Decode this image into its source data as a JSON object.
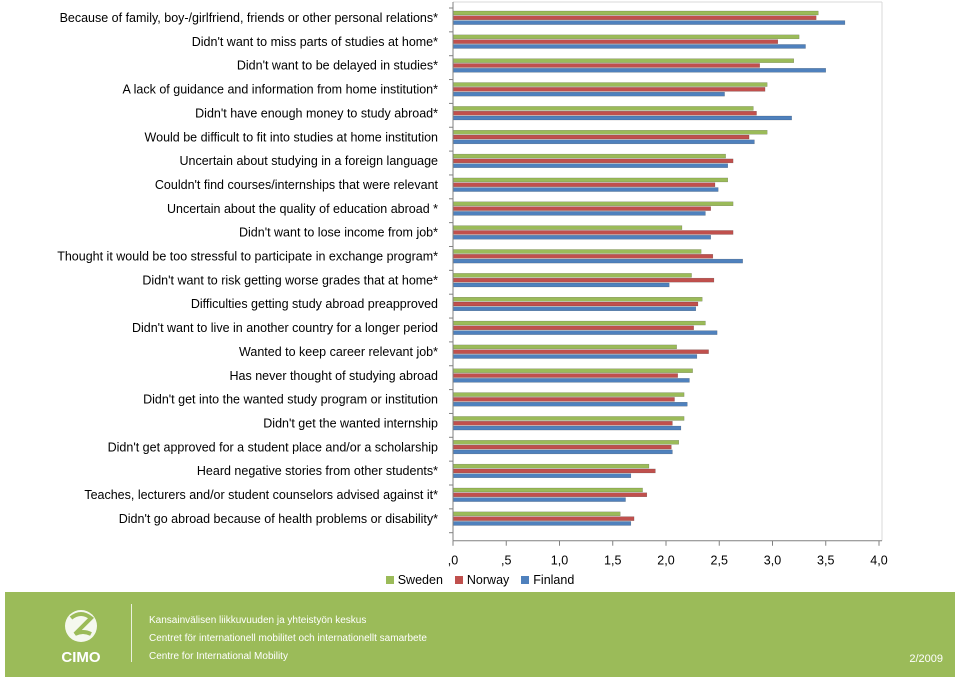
{
  "chart_data": {
    "type": "bar",
    "orientation": "horizontal",
    "categories": [
      "Because of family, boy-/girlfriend, friends or other personal relations*",
      "Didn't want to miss parts of studies at home*",
      "Didn't want to be delayed in studies*",
      "A lack of guidance and information from home institution*",
      "Didn't have enough money to study abroad*",
      "Would be difficult to fit into studies at home institution",
      "Uncertain about studying in a foreign language",
      "Couldn't find courses/internships that were relevant",
      "Uncertain about the quality of education abroad *",
      "Didn't want to lose income from job*",
      "Thought it would be too stressful to participate in exchange program*",
      "Didn't want to risk getting worse grades that at home*",
      "Difficulties getting study abroad preapproved",
      "Didn't want to live in another country for a longer period",
      "Wanted to keep career relevant job*",
      "Has never thought of studying abroad",
      "Didn't get into the wanted study program or institution",
      "Didn't get the wanted internship",
      "Didn't get approved for a student place and/or a scholarship",
      "Heard negative stories from other students*",
      "Teaches, lecturers and/or student counselors advised against it*",
      "Didn't go abroad because of health problems or disability*"
    ],
    "series": [
      {
        "name": "Sweden",
        "color": "#9BBB59",
        "values": [
          3.43,
          3.25,
          3.2,
          2.95,
          2.82,
          2.95,
          2.56,
          2.58,
          2.63,
          2.15,
          2.33,
          2.24,
          2.34,
          2.37,
          2.1,
          2.25,
          2.17,
          2.17,
          2.12,
          1.84,
          1.78,
          1.57
        ]
      },
      {
        "name": "Norway",
        "color": "#C0504D",
        "values": [
          3.41,
          3.05,
          2.88,
          2.93,
          2.85,
          2.78,
          2.63,
          2.46,
          2.42,
          2.63,
          2.44,
          2.45,
          2.3,
          2.26,
          2.4,
          2.11,
          2.08,
          2.06,
          2.05,
          1.9,
          1.82,
          1.7
        ]
      },
      {
        "name": "Finland",
        "color": "#4F81BD",
        "values": [
          3.68,
          3.31,
          3.5,
          2.55,
          3.18,
          2.83,
          2.58,
          2.49,
          2.37,
          2.42,
          2.72,
          2.03,
          2.28,
          2.48,
          2.29,
          2.22,
          2.2,
          2.14,
          2.06,
          1.67,
          1.62,
          1.67
        ]
      }
    ],
    "xlim": [
      0,
      4
    ],
    "x_ticks": [
      ",0",
      ",5",
      "1,0",
      "1,5",
      "2,0",
      "2,5",
      "3,0",
      "3,5",
      "4,0"
    ],
    "grid": false,
    "legend_position": "bottom"
  },
  "footer": {
    "background": "#9BBB59",
    "logo_text": "CIMO",
    "line1": "Kansainvälisen liikkuvuuden ja yhteistyön keskus",
    "line2": "Centret för internationell mobilitet och internationellt samarbete",
    "line3": "Centre for International Mobility",
    "date": "2/2009"
  }
}
